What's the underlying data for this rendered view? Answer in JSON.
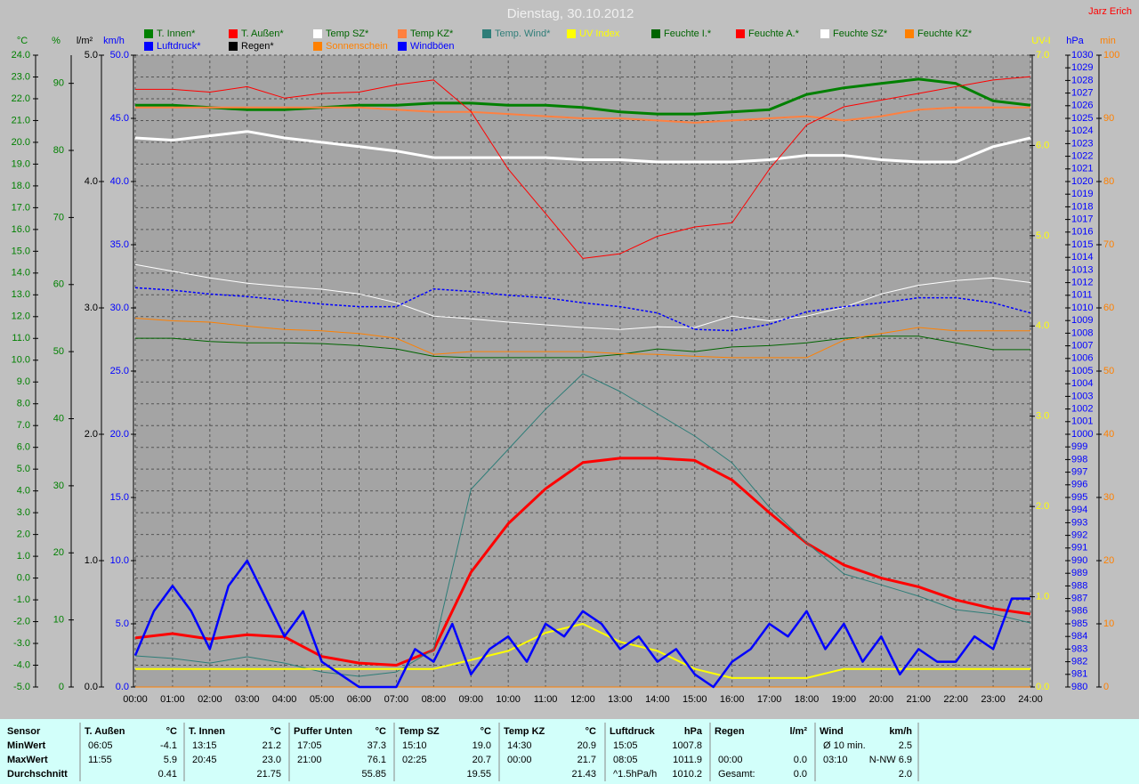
{
  "chart_data": {
    "type": "line",
    "title": "Dienstag, 30.10.2012",
    "credit": "Jarz Erich",
    "grid": true,
    "x": [
      0,
      1,
      2,
      3,
      4,
      5,
      6,
      7,
      8,
      9,
      10,
      11,
      12,
      13,
      14,
      15,
      16,
      17,
      18,
      19,
      20,
      21,
      22,
      23,
      24
    ],
    "xlim": [
      0,
      24
    ],
    "xticks": [
      {
        "value": 0,
        "label": "00:00"
      },
      {
        "value": 1,
        "label": "01:00"
      },
      {
        "value": 2,
        "label": "02:00"
      },
      {
        "value": 3,
        "label": "03:00"
      },
      {
        "value": 4,
        "label": "04:00"
      },
      {
        "value": 5,
        "label": "05:00"
      },
      {
        "value": 6,
        "label": "06:00"
      },
      {
        "value": 7,
        "label": "07:00"
      },
      {
        "value": 8,
        "label": "08:00"
      },
      {
        "value": 9,
        "label": "09:00"
      },
      {
        "value": 10,
        "label": "10:00"
      },
      {
        "value": 11,
        "label": "11:00"
      },
      {
        "value": 12,
        "label": "12:00"
      },
      {
        "value": 13,
        "label": "13:00"
      },
      {
        "value": 14,
        "label": "14:00"
      },
      {
        "value": 15,
        "label": "15:00"
      },
      {
        "value": 16,
        "label": "16:00"
      },
      {
        "value": 17,
        "label": "17:00"
      },
      {
        "value": 18,
        "label": "18:00"
      },
      {
        "value": 19,
        "label": "19:00"
      },
      {
        "value": 20,
        "label": "20:00"
      },
      {
        "value": 21,
        "label": "21:00"
      },
      {
        "value": 22,
        "label": "22:00"
      },
      {
        "value": 23,
        "label": "23:00"
      },
      {
        "value": 24,
        "label": "24:00"
      }
    ],
    "axes": [
      {
        "label": "°C",
        "color": "#008000",
        "ylim": [
          -5,
          24
        ],
        "yticks": [
          {
            "value": -5,
            "label": "-5.0"
          },
          {
            "value": -4,
            "label": "-4.0"
          },
          {
            "value": -3,
            "label": "-3.0"
          },
          {
            "value": -2,
            "label": "-2.0"
          },
          {
            "value": -1,
            "label": "-1.0"
          },
          {
            "value": 0,
            "label": "0.0"
          },
          {
            "value": 1,
            "label": "1.0"
          },
          {
            "value": 2,
            "label": "2.0"
          },
          {
            "value": 3,
            "label": "3.0"
          },
          {
            "value": 4,
            "label": "4.0"
          },
          {
            "value": 5,
            "label": "5.0"
          },
          {
            "value": 6,
            "label": "6.0"
          },
          {
            "value": 7,
            "label": "7.0"
          },
          {
            "value": 8,
            "label": "8.0"
          },
          {
            "value": 9,
            "label": "9.0"
          },
          {
            "value": 10,
            "label": "10.0"
          },
          {
            "value": 11,
            "label": "11.0"
          },
          {
            "value": 12,
            "label": "12.0"
          },
          {
            "value": 13,
            "label": "13.0"
          },
          {
            "value": 14,
            "label": "14.0"
          },
          {
            "value": 15,
            "label": "15.0"
          },
          {
            "value": 16,
            "label": "16.0"
          },
          {
            "value": 17,
            "label": "17.0"
          },
          {
            "value": 18,
            "label": "18.0"
          },
          {
            "value": 19,
            "label": "19.0"
          },
          {
            "value": 20,
            "label": "20.0"
          },
          {
            "value": 21,
            "label": "21.0"
          },
          {
            "value": 22,
            "label": "22.0"
          },
          {
            "value": 23,
            "label": "23.0"
          },
          {
            "value": 24,
            "label": "24.0"
          }
        ]
      },
      {
        "label": "%",
        "color": "#008000",
        "ylim": [
          0,
          94.2
        ],
        "yticks": [
          0,
          10,
          20,
          30,
          40,
          50,
          60,
          70,
          80,
          90
        ]
      },
      {
        "label": "l/m²",
        "color": "#000000",
        "ylim": [
          0,
          5
        ],
        "yticks": [
          {
            "value": 0,
            "label": "0.0"
          },
          {
            "value": 1,
            "label": "1.0"
          },
          {
            "value": 2,
            "label": "2.0"
          },
          {
            "value": 3,
            "label": "3.0"
          },
          {
            "value": 4,
            "label": "4.0"
          },
          {
            "value": 5,
            "label": "5.0"
          }
        ]
      },
      {
        "label": "km/h",
        "color": "#0000ff",
        "ylim": [
          0,
          50
        ],
        "yticks": [
          {
            "value": 0,
            "label": "0.0"
          },
          {
            "value": 5,
            "label": "5.0"
          },
          {
            "value": 10,
            "label": "10.0"
          },
          {
            "value": 15,
            "label": "15.0"
          },
          {
            "value": 20,
            "label": "20.0"
          },
          {
            "value": 25,
            "label": "25.0"
          },
          {
            "value": 30,
            "label": "30.0"
          },
          {
            "value": 35,
            "label": "35.0"
          },
          {
            "value": 40,
            "label": "40.0"
          },
          {
            "value": 45,
            "label": "45.0"
          },
          {
            "value": 50,
            "label": "50.0"
          }
        ]
      },
      {
        "label": "UV-I",
        "color": "#ffff00",
        "ylim": [
          0,
          7
        ],
        "yticks": [
          {
            "value": 0,
            "label": "0.0"
          },
          {
            "value": 1,
            "label": "1.0"
          },
          {
            "value": 2,
            "label": "2.0"
          },
          {
            "value": 3,
            "label": "3.0"
          },
          {
            "value": 4,
            "label": "4.0"
          },
          {
            "value": 5,
            "label": "5.0"
          },
          {
            "value": 6,
            "label": "6.0"
          },
          {
            "value": 7,
            "label": "7.0"
          }
        ]
      },
      {
        "label": "hPa",
        "color": "#0000ff",
        "ylim": [
          980,
          1030
        ],
        "yticks": [
          980,
          981,
          982,
          983,
          984,
          985,
          986,
          987,
          988,
          989,
          990,
          991,
          992,
          993,
          994,
          995,
          996,
          997,
          998,
          999,
          1000,
          1001,
          1002,
          1003,
          1004,
          1005,
          1006,
          1007,
          1008,
          1009,
          1010,
          1011,
          1012,
          1013,
          1014,
          1015,
          1016,
          1017,
          1018,
          1019,
          1020,
          1021,
          1022,
          1023,
          1024,
          1025,
          1026,
          1027,
          1028,
          1029,
          1030
        ]
      },
      {
        "label": "min",
        "color": "#ff8000",
        "ylim": [
          0,
          100
        ],
        "yticks": [
          0,
          10,
          20,
          30,
          40,
          50,
          60,
          70,
          80,
          90,
          100
        ]
      }
    ],
    "series": [
      {
        "name": "T. Innen*",
        "color": "#008000",
        "label_color": "#006400",
        "axis": 0,
        "width": 3,
        "values": [
          21.7,
          21.7,
          21.6,
          21.5,
          21.5,
          21.6,
          21.7,
          21.7,
          21.8,
          21.8,
          21.7,
          21.7,
          21.6,
          21.4,
          21.3,
          21.3,
          21.4,
          21.5,
          22.2,
          22.5,
          22.7,
          22.9,
          22.7,
          21.9,
          21.7
        ]
      },
      {
        "name": "T. Außen*",
        "color": "#ff0000",
        "label_color": "#006400",
        "axis": 0,
        "width": 3,
        "values": [
          -2.75,
          -2.55,
          -2.8,
          -2.6,
          -2.7,
          -3.6,
          -3.9,
          -4.0,
          -3.3,
          0.27,
          2.5,
          4.1,
          5.3,
          5.5,
          5.5,
          5.4,
          4.5,
          3.0,
          1.6,
          0.6,
          0.0,
          -0.4,
          -1.0,
          -1.4,
          -1.65
        ]
      },
      {
        "name": "Temp SZ*",
        "color": "#ffffff",
        "label_color": "#006400",
        "axis": 0,
        "width": 3,
        "values": [
          20.2,
          20.1,
          20.3,
          20.5,
          20.2,
          20.0,
          19.8,
          19.6,
          19.3,
          19.3,
          19.3,
          19.3,
          19.2,
          19.2,
          19.1,
          19.1,
          19.1,
          19.2,
          19.4,
          19.4,
          19.2,
          19.1,
          19.1,
          19.8,
          20.2
        ]
      },
      {
        "name": "Temp KZ*",
        "color": "#ff8040",
        "label_color": "#006400",
        "axis": 0,
        "width": 2,
        "values": [
          21.6,
          21.6,
          21.6,
          21.6,
          21.6,
          21.6,
          21.6,
          21.5,
          21.4,
          21.4,
          21.3,
          21.2,
          21.1,
          21.1,
          21.0,
          20.9,
          21.0,
          21.1,
          21.2,
          21.0,
          21.2,
          21.5,
          21.6,
          21.6,
          21.6
        ]
      },
      {
        "name": "Temp. Wind*",
        "color": "#2e7d78",
        "label_color": "#2e7d78",
        "axis": 0,
        "width": 1,
        "values": [
          -3.57,
          -3.69,
          -3.9,
          -3.61,
          -3.9,
          -4.31,
          -4.51,
          -4.31,
          -3.28,
          4.07,
          5.91,
          7.75,
          9.38,
          8.56,
          7.54,
          6.52,
          5.29,
          3.25,
          1.62,
          0.19,
          -0.31,
          -0.83,
          -1.45,
          -1.65,
          -2.06
        ]
      },
      {
        "name": "UV Index",
        "color": "#ffff00",
        "label_color": "#ffff00",
        "axis": 4,
        "width": 2,
        "values": [
          0.2,
          0.2,
          0.2,
          0.2,
          0.2,
          0.2,
          0.2,
          0.2,
          0.2,
          0.3,
          0.4,
          0.6,
          0.7,
          0.5,
          0.4,
          0.2,
          0.1,
          0.1,
          0.1,
          0.2,
          0.2,
          0.2,
          0.2,
          0.2,
          0.2
        ]
      },
      {
        "name": "Feuchte I.*",
        "color": "#006400",
        "label_color": "#006400",
        "axis": 1,
        "width": 1,
        "values": [
          52.0,
          52.0,
          51.5,
          51.3,
          51.3,
          51.2,
          50.9,
          50.4,
          49.3,
          49.1,
          49.1,
          49.1,
          49.1,
          49.6,
          50.4,
          50.0,
          50.7,
          50.9,
          51.3,
          52.0,
          52.3,
          52.3,
          51.3,
          50.3,
          50.3
        ]
      },
      {
        "name": "Feuchte A.*",
        "color": "#ff0000",
        "label_color": "#006400",
        "axis": 1,
        "width": 1,
        "values": [
          89.1,
          89.1,
          88.7,
          89.5,
          87.8,
          88.5,
          88.7,
          89.8,
          90.5,
          85.8,
          77.2,
          70.6,
          63.9,
          64.6,
          67.2,
          68.6,
          69.2,
          77.2,
          83.8,
          86.5,
          87.5,
          88.5,
          89.5,
          90.5,
          91.0
        ]
      },
      {
        "name": "Feuchte SZ*",
        "color": "#ffffff",
        "label_color": "#006400",
        "axis": 1,
        "width": 1,
        "values": [
          63.0,
          62.0,
          61.0,
          60.2,
          59.7,
          59.3,
          58.6,
          57.3,
          55.3,
          54.9,
          54.4,
          54.0,
          53.6,
          53.3,
          53.7,
          53.6,
          55.3,
          54.6,
          55.3,
          56.6,
          58.6,
          59.9,
          60.6,
          61.0,
          60.3
        ]
      },
      {
        "name": "Feuchte KZ*",
        "color": "#ff8000",
        "label_color": "#006400",
        "axis": 1,
        "width": 1,
        "values": [
          55.0,
          54.6,
          54.4,
          53.8,
          53.3,
          53.1,
          52.7,
          52.0,
          49.6,
          50.0,
          50.0,
          50.0,
          50.0,
          49.7,
          49.6,
          49.3,
          49.1,
          49.1,
          49.1,
          51.7,
          52.7,
          53.6,
          53.1,
          53.1,
          53.1
        ]
      },
      {
        "name": "Luftdruck*",
        "color": "#0000ff",
        "label_color": "#0000ff",
        "axis": 5,
        "width": 1.5,
        "dash": true,
        "values": [
          1011.6,
          1011.4,
          1011.1,
          1010.9,
          1010.6,
          1010.3,
          1010.1,
          1010.1,
          1011.5,
          1011.3,
          1011.0,
          1010.8,
          1010.4,
          1010.1,
          1009.6,
          1008.3,
          1008.2,
          1008.7,
          1009.7,
          1010.1,
          1010.4,
          1010.8,
          1010.8,
          1010.4,
          1009.6
        ]
      },
      {
        "name": "Regen*",
        "color": "#000000",
        "label_color": "#000000",
        "axis": 2,
        "width": 1,
        "values": [
          0,
          0,
          0,
          0,
          0,
          0,
          0,
          0,
          0,
          0,
          0,
          0,
          0,
          0,
          0,
          0,
          0,
          0,
          0,
          0,
          0,
          0,
          0,
          0,
          0
        ]
      },
      {
        "name": "Sonnenschein",
        "color": "#ff8000",
        "label_color": "#ff8000",
        "axis": 6,
        "width": 1,
        "values": [
          0,
          0,
          0,
          0,
          0,
          0,
          0,
          0,
          0,
          0,
          0,
          0,
          0,
          0,
          0,
          0,
          0,
          0,
          0,
          0,
          0,
          0,
          0,
          0,
          0
        ]
      },
      {
        "name": "Windböen",
        "color": "#0000ff",
        "label_color": "#0000ff",
        "axis": 3,
        "width": 2.5,
        "x": [
          0,
          0.5,
          1,
          1.5,
          2,
          2.5,
          3,
          3.5,
          4,
          4.5,
          5,
          5.5,
          6,
          6.5,
          7,
          7.5,
          8,
          8.5,
          9,
          9.5,
          10,
          10.5,
          11,
          11.5,
          12,
          12.5,
          13,
          13.5,
          14,
          14.5,
          15,
          15.5,
          16,
          16.5,
          17,
          17.5,
          18,
          18.5,
          19,
          19.5,
          20,
          20.5,
          21,
          21.5,
          22,
          22.5,
          23,
          23.5,
          24
        ],
        "values": [
          2.5,
          6,
          8,
          6,
          3,
          8,
          10,
          7,
          4,
          6,
          2,
          1,
          0,
          0,
          0,
          3,
          2,
          5,
          1,
          3,
          4,
          2,
          5,
          4,
          6,
          5,
          3,
          4,
          2,
          3,
          1,
          0,
          2,
          3,
          5,
          4,
          6,
          3,
          5,
          2,
          4,
          1,
          3,
          2,
          2,
          4,
          3,
          7,
          7
        ]
      }
    ]
  },
  "table": {
    "corner": "Sensor",
    "row_labels": [
      "MinWert",
      "MaxWert",
      "Durchschnitt"
    ],
    "groups": [
      {
        "name": "T. Außen",
        "unit": "°C",
        "rows": [
          [
            "06:05",
            "-4.1"
          ],
          [
            "11:55",
            "5.9"
          ],
          [
            null,
            "0.41"
          ]
        ]
      },
      {
        "name": "T. Innen",
        "unit": "°C",
        "rows": [
          [
            "13:15",
            "21.2"
          ],
          [
            "20:45",
            "23.0"
          ],
          [
            null,
            "21.75"
          ]
        ]
      },
      {
        "name": "Puffer Unten",
        "unit": "°C",
        "rows": [
          [
            "17:05",
            "37.3"
          ],
          [
            "21:00",
            "76.1"
          ],
          [
            null,
            "55.85"
          ]
        ]
      },
      {
        "name": "Temp SZ",
        "unit": "°C",
        "rows": [
          [
            "15:10",
            "19.0"
          ],
          [
            "02:25",
            "20.7"
          ],
          [
            null,
            "19.55"
          ]
        ]
      },
      {
        "name": "Temp KZ",
        "unit": "°C",
        "rows": [
          [
            "14:30",
            "20.9"
          ],
          [
            "00:00",
            "21.7"
          ],
          [
            null,
            "21.43"
          ]
        ]
      },
      {
        "name": "Luftdruck",
        "unit": "hPa",
        "rows": [
          [
            "15:05",
            "1007.8"
          ],
          [
            "08:05",
            "1011.9"
          ],
          [
            "^1.5hPa/h",
            "1010.2"
          ]
        ]
      },
      {
        "name": "Regen",
        "unit": "l/m²",
        "rows": [
          [
            null,
            null
          ],
          [
            "00:00",
            "0.0"
          ],
          [
            "Gesamt:",
            "0.0"
          ]
        ]
      },
      {
        "name": "Wind",
        "unit": "km/h",
        "rows": [
          [
            "Ø 10 min.",
            "2.5"
          ],
          [
            "03:10",
            "N-NW 6.9"
          ],
          [
            null,
            "2.0"
          ]
        ]
      }
    ]
  }
}
